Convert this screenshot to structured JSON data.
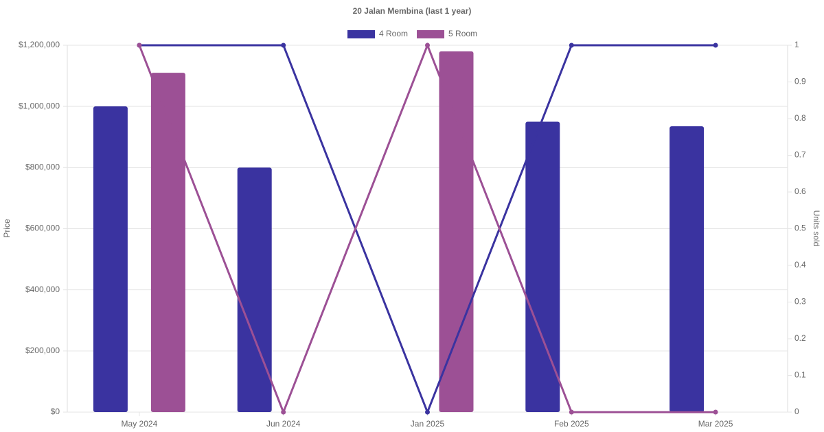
{
  "chart_data": {
    "type": "bar",
    "title": "20 Jalan Membina (last 1 year)",
    "categories": [
      "May 2024",
      "Jun 2024",
      "Jan 2025",
      "Feb 2025",
      "Mar 2025"
    ],
    "y_label": "Price",
    "y2_label": "Units sold",
    "series": [
      {
        "name": "4 Room",
        "color": "#3a33a0",
        "values": [
          1000000,
          800000,
          null,
          950000,
          935000
        ],
        "units_sold": [
          1,
          1,
          0,
          1,
          1
        ]
      },
      {
        "name": "5 Room",
        "color": "#9c5095",
        "values": [
          1110000,
          null,
          1180000,
          null,
          null
        ],
        "units_sold": [
          1,
          0,
          1,
          0,
          0
        ]
      }
    ],
    "ylim": [
      0,
      1200000
    ],
    "yticks": [
      {
        "value": 0,
        "label": "$0"
      },
      {
        "value": 200000,
        "label": "$200,000"
      },
      {
        "value": 400000,
        "label": "$400,000"
      },
      {
        "value": 600000,
        "label": "$600,000"
      },
      {
        "value": 800000,
        "label": "$800,000"
      },
      {
        "value": 1000000,
        "label": "$1,000,000"
      },
      {
        "value": 1200000,
        "label": "$1,200,000"
      }
    ],
    "y2lim": [
      0,
      1
    ],
    "y2ticks": [
      0,
      0.1,
      0.2,
      0.3,
      0.4,
      0.5,
      0.6,
      0.7,
      0.8,
      0.9,
      1
    ],
    "grid": true,
    "legend": "top"
  }
}
